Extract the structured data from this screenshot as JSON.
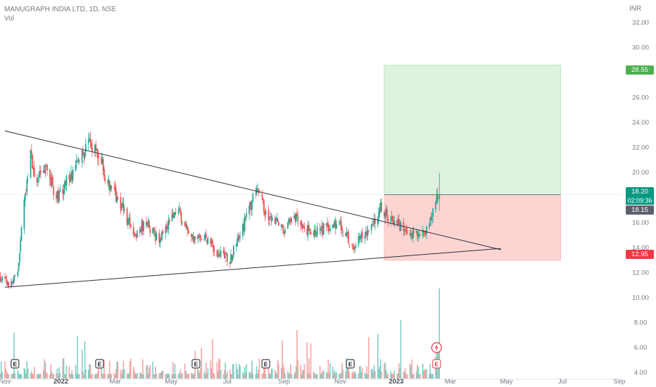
{
  "header": {
    "symbol_line": "MANUGRAPH INDIA LTD, 1D, NSE",
    "volume_label": "Vol"
  },
  "axis": {
    "currency": "INR"
  },
  "price_labels": {
    "target": "28.55",
    "current": "18.20",
    "countdown": "02:09:36",
    "close_marker": "18.15",
    "stop": "12.95"
  },
  "colors": {
    "up": "#26a69a",
    "down": "#ef5350",
    "up_volume": "#7fcdc4",
    "down_volume": "#f5a6a4",
    "profit_zone": "#dff2df",
    "loss_zone": "#fcd5d3",
    "trendline": "#2a2e39",
    "axis_text": "#787b86"
  },
  "chart_data": {
    "type": "candlestick",
    "title": "MANUGRAPH INDIA LTD, 1D, NSE",
    "y_unit": "INR",
    "ylim": [
      3.5,
      33.5
    ],
    "y_ticks": [
      "4.00",
      "6.00",
      "8.00",
      "10.00",
      "12.00",
      "14.00",
      "16.00",
      "18.00",
      "20.00",
      "22.00",
      "24.00",
      "26.00",
      "28.00",
      "30.00",
      "32.00"
    ],
    "x_ticks": [
      {
        "label": "Nov",
        "date": "2021-11-01"
      },
      {
        "label": "2022",
        "date": "2022-01-01"
      },
      {
        "label": "Mar",
        "date": "2022-03-01"
      },
      {
        "label": "May",
        "date": "2022-05-01"
      },
      {
        "label": "Jul",
        "date": "2022-07-01"
      },
      {
        "label": "Sep",
        "date": "2022-09-01"
      },
      {
        "label": "Nov",
        "date": "2022-11-01"
      },
      {
        "label": "2023",
        "date": "2023-01-01"
      },
      {
        "label": "Mar",
        "date": "2023-03-01"
      },
      {
        "label": "May",
        "date": "2023-05-01"
      },
      {
        "label": "Jul",
        "date": "2023-07-01"
      },
      {
        "label": "Sep",
        "date": "2023-09-01"
      }
    ],
    "price_path": [
      [
        "2021-10-25",
        11.5
      ],
      [
        "2021-11-08",
        11.0
      ],
      [
        "2021-11-15",
        12.0
      ],
      [
        "2021-11-22",
        17.5
      ],
      [
        "2021-11-29",
        21.5
      ],
      [
        "2021-12-06",
        19.0
      ],
      [
        "2021-12-13",
        20.5
      ],
      [
        "2021-12-20",
        19.5
      ],
      [
        "2021-12-27",
        18.0
      ],
      [
        "2022-01-10",
        19.5
      ],
      [
        "2022-01-24",
        21.5
      ],
      [
        "2022-02-07",
        22.5
      ],
      [
        "2022-02-21",
        19.0
      ],
      [
        "2022-03-07",
        17.5
      ],
      [
        "2022-03-21",
        15.0
      ],
      [
        "2022-04-04",
        16.0
      ],
      [
        "2022-04-18",
        14.5
      ],
      [
        "2022-05-02",
        16.5
      ],
      [
        "2022-05-09",
        17.0
      ],
      [
        "2022-05-23",
        14.5
      ],
      [
        "2022-06-06",
        15.0
      ],
      [
        "2022-06-20",
        13.5
      ],
      [
        "2022-07-04",
        13.0
      ],
      [
        "2022-07-18",
        15.5
      ],
      [
        "2022-08-01",
        18.5
      ],
      [
        "2022-08-15",
        16.5
      ],
      [
        "2022-09-01",
        15.5
      ],
      [
        "2022-09-15",
        16.5
      ],
      [
        "2022-10-01",
        15.0
      ],
      [
        "2022-10-15",
        15.5
      ],
      [
        "2022-11-01",
        16.0
      ],
      [
        "2022-11-15",
        14.0
      ],
      [
        "2022-12-01",
        15.5
      ],
      [
        "2022-12-15",
        17.0
      ],
      [
        "2023-01-01",
        16.0
      ],
      [
        "2023-01-20",
        15.0
      ],
      [
        "2023-02-01",
        15.2
      ],
      [
        "2023-02-10",
        17.0
      ],
      [
        "2023-02-17",
        18.2
      ]
    ],
    "volume_scale": 10,
    "trendlines": [
      {
        "from": [
          "2021-11-01",
          23.3
        ],
        "to": [
          "2023-04-25",
          13.8
        ]
      },
      {
        "from": [
          "2021-11-01",
          10.8
        ],
        "to": [
          "2023-04-25",
          13.9
        ]
      }
    ],
    "position": {
      "entry": 18.2,
      "target": 28.55,
      "stop": 12.95,
      "start": "2022-12-19",
      "end": "2023-06-29"
    },
    "earnings_dates": [
      "2021-11-12",
      "2022-02-12",
      "2022-05-28",
      "2022-08-12",
      "2022-11-12",
      "2023-02-14"
    ]
  }
}
